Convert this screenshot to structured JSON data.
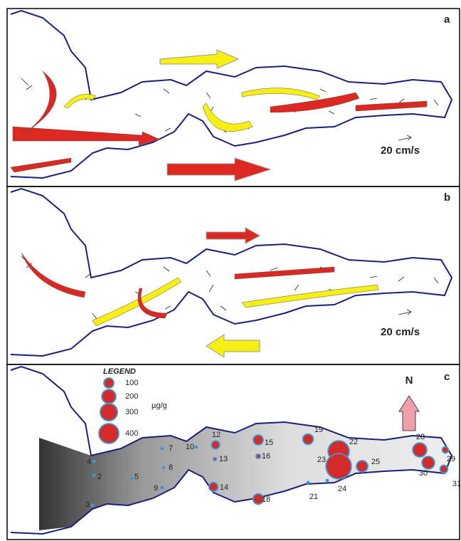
{
  "panels": [
    {
      "label": "a",
      "scale_label": "20 cm/s"
    },
    {
      "label": "b",
      "scale_label": "20 cm/s"
    },
    {
      "label": "c",
      "north": "N",
      "legend": {
        "title": "LEGEND",
        "unit": "µg/g",
        "values": [
          100,
          200,
          300,
          400
        ]
      },
      "stations": [
        {
          "label": "2",
          "value": 5
        },
        {
          "label": "3",
          "value": 5
        },
        {
          "label": "4",
          "value": 5
        },
        {
          "label": "5",
          "value": 5
        },
        {
          "label": "7",
          "value": 5
        },
        {
          "label": "8",
          "value": 5
        },
        {
          "label": "9",
          "value": 5
        },
        {
          "label": "10",
          "value": 5
        },
        {
          "label": "12",
          "value": 70
        },
        {
          "label": "13",
          "value": 10
        },
        {
          "label": "14",
          "value": 80
        },
        {
          "label": "15",
          "value": 100
        },
        {
          "label": "16",
          "value": 20
        },
        {
          "label": "18",
          "value": 110
        },
        {
          "label": "19",
          "value": 110
        },
        {
          "label": "21",
          "value": 5
        },
        {
          "label": "22",
          "value": 450
        },
        {
          "label": "23",
          "value": 650
        },
        {
          "label": "24",
          "value": 5
        },
        {
          "label": "25",
          "value": 130
        },
        {
          "label": "28",
          "value": 200
        },
        {
          "label": "29",
          "value": 40
        },
        {
          "label": "30",
          "value": 160
        },
        {
          "label": "31",
          "value": 60
        }
      ]
    }
  ]
}
